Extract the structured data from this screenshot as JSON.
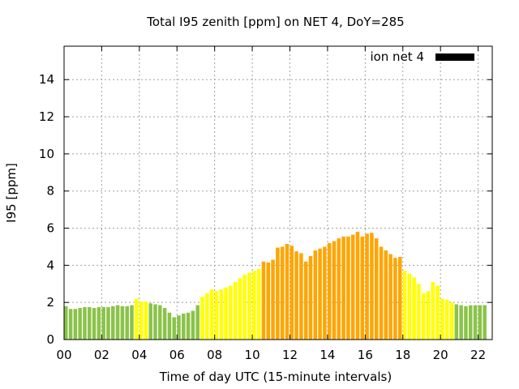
{
  "chart_data": {
    "type": "bar",
    "title": "Total I95 zenith [ppm] on NET 4, DoY=285",
    "xlabel": "Time of day UTC (15-minute intervals)",
    "ylabel": "I95 [ppm]",
    "xlim": [
      0,
      22.75
    ],
    "ylim": [
      0,
      15.8
    ],
    "x_ticks": [
      "00",
      "02",
      "04",
      "06",
      "08",
      "10",
      "12",
      "14",
      "16",
      "18",
      "20",
      "22"
    ],
    "y_ticks": [
      "0",
      "2",
      "4",
      "6",
      "8",
      "10",
      "12",
      "14"
    ],
    "grid": true,
    "legend": {
      "label": "ion net 4",
      "position": "top-right",
      "color": "#000000"
    },
    "interval_hours": 0.25,
    "first_hour": 0,
    "values": [
      1.8,
      1.65,
      1.65,
      1.7,
      1.75,
      1.75,
      1.7,
      1.75,
      1.75,
      1.75,
      1.8,
      1.85,
      1.8,
      1.8,
      1.85,
      2.2,
      2.05,
      2.05,
      1.95,
      1.9,
      1.85,
      1.7,
      1.45,
      1.2,
      1.3,
      1.4,
      1.45,
      1.55,
      1.85,
      2.3,
      2.5,
      2.7,
      2.6,
      2.7,
      2.8,
      2.9,
      3.1,
      3.3,
      3.5,
      3.6,
      3.7,
      3.8,
      4.2,
      4.15,
      4.3,
      4.95,
      5.0,
      5.15,
      5.05,
      4.75,
      4.65,
      4.2,
      4.5,
      4.8,
      4.9,
      5.0,
      5.2,
      5.3,
      5.45,
      5.55,
      5.55,
      5.65,
      5.8,
      5.55,
      5.7,
      5.75,
      5.45,
      5.0,
      4.8,
      4.6,
      4.4,
      4.45,
      3.7,
      3.55,
      3.35,
      3.0,
      2.5,
      2.6,
      3.1,
      2.9,
      2.2,
      2.15,
      2.0,
      1.9,
      1.85,
      1.8,
      1.85,
      1.85,
      1.85,
      1.85
    ],
    "colors": [
      "#8bc34a",
      "#8bc34a",
      "#8bc34a",
      "#8bc34a",
      "#8bc34a",
      "#8bc34a",
      "#8bc34a",
      "#8bc34a",
      "#8bc34a",
      "#8bc34a",
      "#8bc34a",
      "#8bc34a",
      "#8bc34a",
      "#8bc34a",
      "#8bc34a",
      "#ffff00",
      "#ffff00",
      "#ffff00",
      "#8bc34a",
      "#8bc34a",
      "#8bc34a",
      "#8bc34a",
      "#8bc34a",
      "#8bc34a",
      "#8bc34a",
      "#8bc34a",
      "#8bc34a",
      "#8bc34a",
      "#8bc34a",
      "#ffff00",
      "#ffff00",
      "#ffff00",
      "#ffff00",
      "#ffff00",
      "#ffff00",
      "#ffff00",
      "#ffff00",
      "#ffff00",
      "#ffff00",
      "#ffff00",
      "#ffff00",
      "#ffff00",
      "#ffa500",
      "#ffa500",
      "#ffa500",
      "#ffa500",
      "#ffa500",
      "#ffa500",
      "#ffa500",
      "#ffa500",
      "#ffa500",
      "#ffa500",
      "#ffa500",
      "#ffa500",
      "#ffa500",
      "#ffa500",
      "#ffa500",
      "#ffa500",
      "#ffa500",
      "#ffa500",
      "#ffa500",
      "#ffa500",
      "#ffa500",
      "#ffa500",
      "#ffa500",
      "#ffa500",
      "#ffa500",
      "#ffa500",
      "#ffa500",
      "#ffa500",
      "#ffa500",
      "#ffa500",
      "#ffff00",
      "#ffff00",
      "#ffff00",
      "#ffff00",
      "#ffff00",
      "#ffff00",
      "#ffff00",
      "#ffff00",
      "#ffff00",
      "#ffff00",
      "#ffff00",
      "#8bc34a",
      "#8bc34a",
      "#8bc34a",
      "#8bc34a",
      "#8bc34a",
      "#8bc34a",
      "#8bc34a"
    ]
  }
}
